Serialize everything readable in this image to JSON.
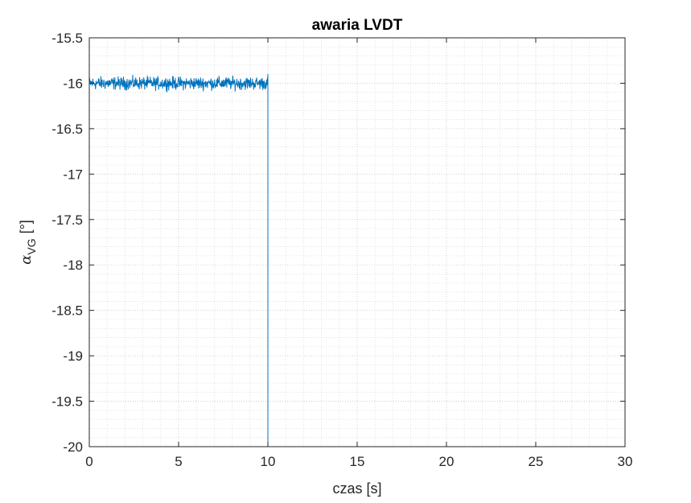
{
  "chart_data": {
    "type": "line",
    "title": "awaria LVDT",
    "xlabel": "czas [s]",
    "ylabel": {
      "symbol": "α",
      "subscript": "VG",
      "unit": "[°]"
    },
    "xlim": [
      0,
      30
    ],
    "ylim": [
      -20,
      -15.5
    ],
    "x_ticks": [
      0,
      5,
      10,
      15,
      20,
      25,
      30
    ],
    "x_tick_labels": [
      "0",
      "5",
      "10",
      "15",
      "20",
      "25",
      "30"
    ],
    "y_ticks": [
      -20,
      -19.5,
      -19,
      -18.5,
      -18,
      -17.5,
      -17,
      -16.5,
      -16,
      -15.5
    ],
    "y_tick_labels": [
      "-20",
      "-19.5",
      "-19",
      "-18.5",
      "-18",
      "-17.5",
      "-17",
      "-16.5",
      "-16",
      "-15.5"
    ],
    "grid": true,
    "minor_grid": true,
    "series": [
      {
        "color": "#0072BD",
        "segments": [
          {
            "x_range": [
              0,
              10
            ],
            "mean": -16.0,
            "noise_amplitude": 0.1,
            "description": "noisy signal around -16"
          },
          {
            "x": [
              10,
              10
            ],
            "y": [
              -15.9,
              -20
            ]
          },
          {
            "x": [
              10,
              30
            ],
            "y": [
              -20,
              -20
            ]
          }
        ]
      }
    ]
  }
}
